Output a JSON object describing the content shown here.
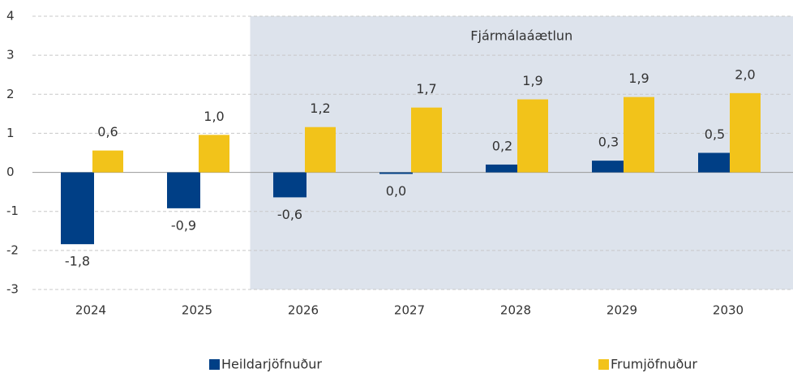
{
  "chart_data": {
    "type": "bar",
    "categories": [
      "2024",
      "2025",
      "2026",
      "2027",
      "2028",
      "2029",
      "2030"
    ],
    "series": [
      {
        "name": "Heildarjöfnuður",
        "color": "#003f86",
        "values": [
          -1.84,
          -0.92,
          -0.64,
          -0.04,
          0.2,
          0.3,
          0.5
        ],
        "value_labels": [
          "-1,8",
          "-0,9",
          "-0,6",
          "0,0",
          "0,2",
          "0,3",
          "0,5"
        ]
      },
      {
        "name": "Frumjöfnuður",
        "color": "#f2c31a",
        "values": [
          0.56,
          0.96,
          1.16,
          1.66,
          1.87,
          1.93,
          2.03
        ],
        "value_labels": [
          "0,6",
          "1,0",
          "1,2",
          "1,7",
          "1,9",
          "1,9",
          "2,0"
        ]
      }
    ],
    "ylim": [
      -3,
      4
    ],
    "yticks": [
      -3,
      -2,
      -1,
      0,
      1,
      2,
      3,
      4
    ],
    "grid": true,
    "shaded_region": {
      "label": "Fjármálaáætlun",
      "from": "2026",
      "to": "2030",
      "color": "#dde3ec"
    },
    "legend": "bottom"
  }
}
